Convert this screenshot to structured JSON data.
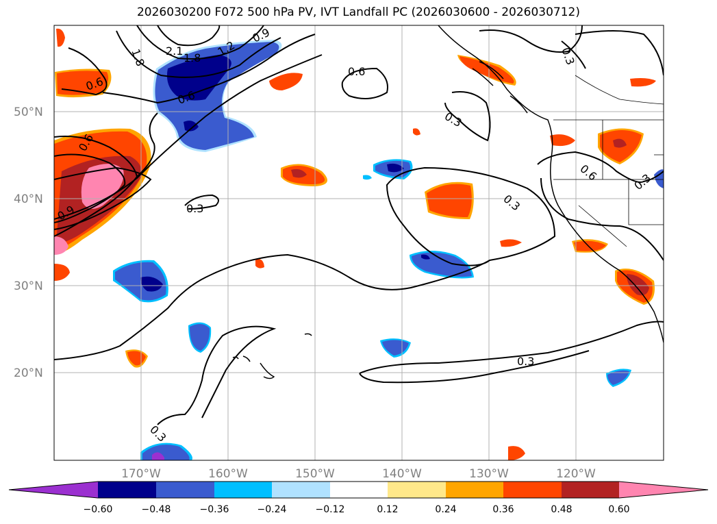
{
  "title": "2026030200 F072 500 hPa PV, IVT Landfall PC (2026030600 - 2026030712)",
  "lat_labels": [
    "50°N",
    "40°N",
    "30°N",
    "20°N"
  ],
  "lon_labels": [
    "170°W",
    "160°W",
    "150°W",
    "140°W",
    "130°W",
    "120°W"
  ],
  "colorbar": {
    "colors": [
      "#9b30d0",
      "#00008b",
      "#3a5bcf",
      "#00bfff",
      "#b0e2ff",
      "#ffffff",
      "#ffe88a",
      "#ffa500",
      "#ff4500",
      "#b22222",
      "#ff85b0"
    ],
    "labels": [
      "−0.60",
      "−0.48",
      "−0.36",
      "−0.24",
      "−0.12",
      "0.12",
      "0.24",
      "0.36",
      "0.48",
      "0.60"
    ]
  },
  "contour_labels": [
    "1.8",
    "2.1",
    "1.8",
    "1.2",
    "0.9",
    "0.6",
    "0.6",
    "0.6",
    "0.9",
    "0.6",
    "0.3",
    "0.3",
    "0.3",
    "0.3",
    "0.3",
    "0.6",
    "0.3",
    "0.3",
    "0.3",
    "0.3"
  ],
  "colors": {
    "contour": "#000000",
    "grid": "#b0b0b0",
    "label_gray": "#808080"
  }
}
